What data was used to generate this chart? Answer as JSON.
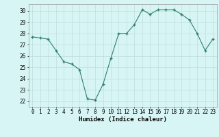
{
  "x": [
    0,
    1,
    2,
    3,
    4,
    5,
    6,
    7,
    8,
    9,
    10,
    11,
    12,
    13,
    14,
    15,
    16,
    17,
    18,
    19,
    20,
    21,
    22,
    23
  ],
  "y": [
    27.7,
    27.6,
    27.5,
    26.5,
    25.5,
    25.3,
    24.8,
    22.2,
    22.1,
    23.5,
    25.8,
    28.0,
    28.0,
    28.8,
    30.1,
    29.7,
    30.1,
    30.1,
    30.1,
    29.7,
    29.2,
    28.0,
    26.5,
    27.5
  ],
  "line_color": "#2e7d6e",
  "marker_color": "#2e7d6e",
  "bg_color": "#d8f5f5",
  "grid_color": "#c0dede",
  "xlabel": "Humidex (Indice chaleur)",
  "ylim": [
    21.5,
    30.6
  ],
  "xlim": [
    -0.5,
    23.5
  ],
  "yticks": [
    22,
    23,
    24,
    25,
    26,
    27,
    28,
    29,
    30
  ],
  "xticks": [
    0,
    1,
    2,
    3,
    4,
    5,
    6,
    7,
    8,
    9,
    10,
    11,
    12,
    13,
    14,
    15,
    16,
    17,
    18,
    19,
    20,
    21,
    22,
    23
  ],
  "label_fontsize": 6.5,
  "tick_fontsize": 5.5
}
